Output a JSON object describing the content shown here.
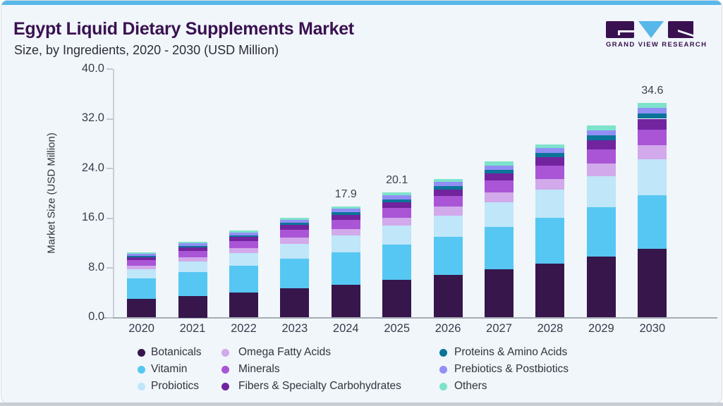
{
  "header": {
    "title": "Egypt Liquid Dietary Supplements Market",
    "subtitle": "Size, by Ingredients, 2020 - 2030 (USD Million)",
    "logo_text": "GRAND VIEW RESEARCH",
    "brand_purple": "#3A1150",
    "brand_blue": "#56B7E8"
  },
  "colors": {
    "card_background": "#F0F6FA",
    "top_strip": "#57B7E8",
    "bottom_strip": "#C9CED4",
    "axis_line": "#C9CED6",
    "baseline": "#A6ACB4",
    "text_dark": "#3C3C4A"
  },
  "chart_data": {
    "type": "bar",
    "stacked": true,
    "title": "Egypt Liquid Dietary Supplements Market Size, by Ingredients, 2020 - 2030 (USD Million)",
    "xlabel": "",
    "ylabel": "Market Size (USD Million)",
    "ylim": [
      0,
      40
    ],
    "yticks": [
      "0.0",
      "8.0",
      "16.0",
      "24.0",
      "32.0",
      "40.0"
    ],
    "grid": false,
    "legend_position": "bottom",
    "categories": [
      "2020",
      "2021",
      "2022",
      "2023",
      "2024",
      "2025",
      "2026",
      "2027",
      "2028",
      "2029",
      "2030"
    ],
    "bar_total_labels": [
      null,
      null,
      null,
      null,
      "17.9",
      "20.1",
      null,
      null,
      null,
      null,
      "34.6"
    ],
    "series": [
      {
        "name": "Botanicals",
        "color": "#36164B",
        "values": [
          2.97,
          3.5,
          4.07,
          4.74,
          5.33,
          6.07,
          6.81,
          7.76,
          8.73,
          9.78,
          11.08
        ]
      },
      {
        "name": "Vitamin",
        "color": "#56C7F2",
        "values": [
          3.31,
          3.77,
          4.23,
          4.76,
          5.18,
          5.68,
          6.16,
          6.77,
          7.34,
          7.93,
          8.66
        ]
      },
      {
        "name": "Probiotics",
        "color": "#BFE6F9",
        "values": [
          1.51,
          1.78,
          2.07,
          2.41,
          2.72,
          3.09,
          3.48,
          3.97,
          4.47,
          5.01,
          5.68
        ]
      },
      {
        "name": "Omega Fatty Acids",
        "color": "#D2A9EA",
        "values": [
          0.57,
          0.68,
          0.8,
          0.94,
          1.06,
          1.22,
          1.38,
          1.59,
          1.8,
          2.03,
          2.32
        ]
      },
      {
        "name": "Minerals",
        "color": "#A955D6",
        "values": [
          0.91,
          1.04,
          1.17,
          1.33,
          1.45,
          1.6,
          1.75,
          1.93,
          2.11,
          2.3,
          2.53
        ]
      },
      {
        "name": "Fibers & Specialty Carbohydrates",
        "color": "#71249E",
        "values": [
          0.45,
          0.54,
          0.62,
          0.73,
          0.82,
          0.94,
          1.05,
          1.2,
          1.36,
          1.53,
          1.73
        ]
      },
      {
        "name": "Proteins & Amino Acids",
        "color": "#0B7499",
        "values": [
          0.22,
          0.26,
          0.3,
          0.35,
          0.39,
          0.44,
          0.5,
          0.56,
          0.63,
          0.71,
          0.8
        ]
      },
      {
        "name": "Prebiotics & Postbiotics",
        "color": "#918FF5",
        "values": [
          0.34,
          0.39,
          0.44,
          0.5,
          0.55,
          0.6,
          0.66,
          0.73,
          0.8,
          0.88,
          0.97
        ]
      },
      {
        "name": "Others",
        "color": "#7DE3CB",
        "values": [
          0.22,
          0.26,
          0.3,
          0.35,
          0.4,
          0.45,
          0.51,
          0.58,
          0.65,
          0.73,
          0.83
        ]
      }
    ],
    "legend_columns": [
      [
        "Botanicals",
        "Vitamin",
        "Probiotics"
      ],
      [
        "Omega Fatty Acids",
        "Minerals",
        "Fibers & Specialty Carbohydrates"
      ],
      [
        "Proteins & Amino Acids",
        "Prebiotics & Postbiotics",
        "Others"
      ]
    ]
  }
}
